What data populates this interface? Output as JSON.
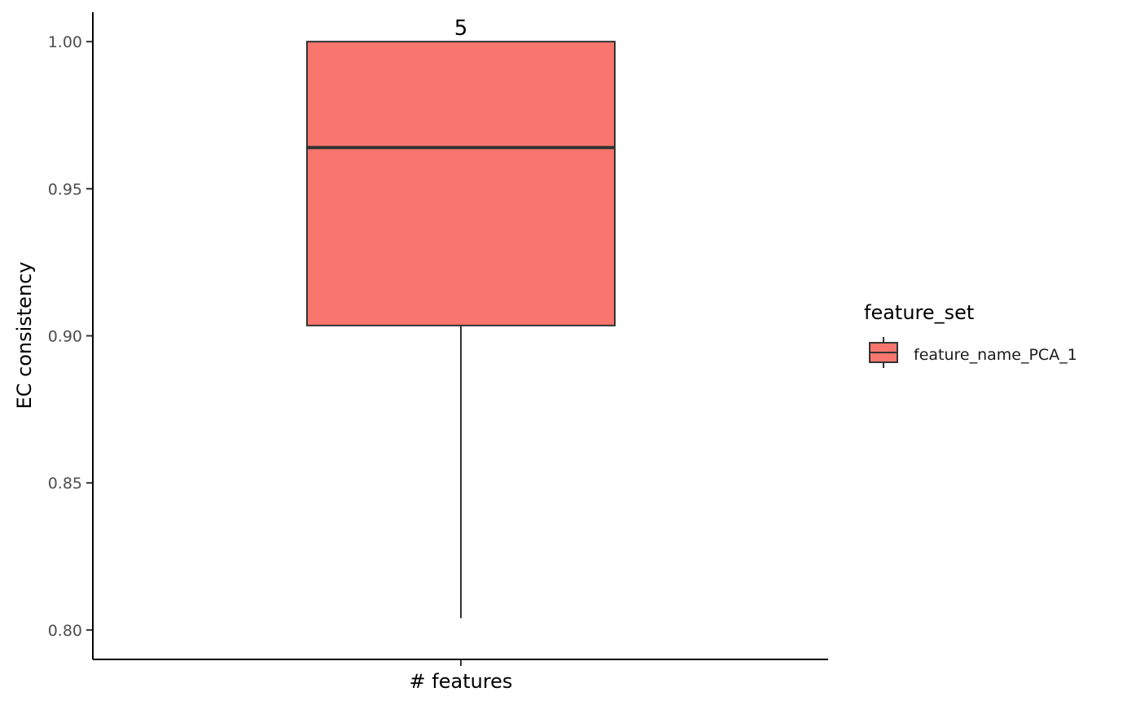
{
  "chart_data": {
    "type": "box",
    "categories": [
      "# features"
    ],
    "xlabel": "",
    "x_tick_label": "# features",
    "ylabel": "EC consistency",
    "ylim": [
      0.79,
      1.01
    ],
    "yticks": [
      0.8,
      0.85,
      0.9,
      0.95,
      1.0
    ],
    "ytick_labels": [
      "0.80",
      "0.85",
      "0.90",
      "0.95",
      "1.00"
    ],
    "grid": false,
    "series": [
      {
        "name": "feature_name_PCA_1",
        "color": "#F8766D",
        "min": 0.804,
        "q1": 0.9035,
        "median": 0.964,
        "q3": 1.0,
        "max": 1.0,
        "count_label": "5"
      }
    ],
    "legend": {
      "title": "feature_set",
      "position": "right",
      "entries": [
        "feature_name_PCA_1"
      ]
    }
  }
}
